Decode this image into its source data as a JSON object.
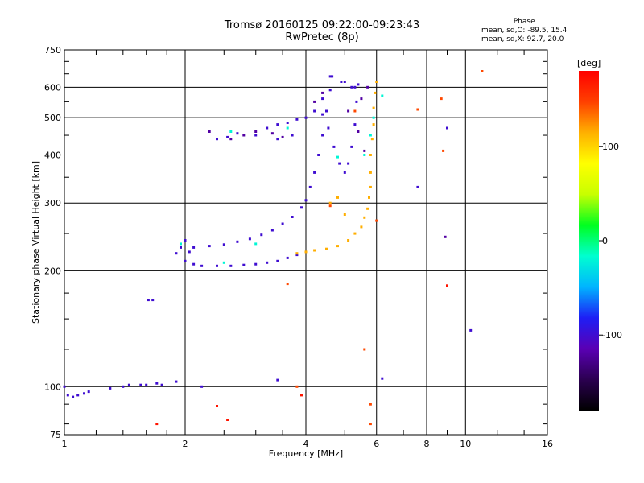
{
  "header": {
    "title_line1": "Tromsø 20160125 09:22:00-09:23:43",
    "title_line2": "RwPretec (8p)"
  },
  "phase_stats": {
    "title": "Phase",
    "line_o": "mean, sd,O: -89.5, 15.4",
    "line_x": "mean, sd,X:  92.7, 20.0"
  },
  "colorbar": {
    "unit": "[deg]",
    "ticks": [
      "100",
      "0",
      "-100"
    ],
    "tick_values": [
      100,
      0,
      -100
    ],
    "range": [
      -180,
      180
    ],
    "stops": [
      "#000000",
      "#2b0050",
      "#5a00b4",
      "#1e1ef5",
      "#00b4ff",
      "#00ffd0",
      "#00ff20",
      "#c8ff00",
      "#ffff00",
      "#ffb000",
      "#ff4000",
      "#ff0000"
    ]
  },
  "chart_data": {
    "type": "scatter",
    "xlabel": "Frequency [MHz]",
    "ylabel": "Stationary phase Virtual Height [km]",
    "xscale": "log",
    "yscale": "log",
    "xlim": [
      1,
      16
    ],
    "ylim": [
      75,
      750
    ],
    "xticks": [
      1,
      2,
      4,
      6,
      8,
      10,
      16
    ],
    "xtick_labels": [
      "1",
      "2",
      "4",
      "6",
      "8",
      "10",
      "16"
    ],
    "yticks": [
      75,
      100,
      200,
      300,
      400,
      500,
      600,
      750
    ],
    "ytick_labels": [
      "75",
      "100",
      "200",
      "300",
      "400",
      "500",
      "600",
      "750"
    ],
    "grid": true,
    "series": [
      {
        "color_value": -100,
        "points": [
          [
            1.0,
            100
          ],
          [
            1.02,
            95
          ],
          [
            1.05,
            94
          ],
          [
            1.08,
            95
          ],
          [
            1.12,
            96
          ],
          [
            1.15,
            97
          ],
          [
            1.3,
            99
          ],
          [
            1.4,
            100
          ],
          [
            1.45,
            101
          ],
          [
            1.55,
            101
          ],
          [
            1.6,
            101
          ],
          [
            1.7,
            102
          ],
          [
            1.75,
            101
          ],
          [
            1.62,
            168
          ],
          [
            1.66,
            168
          ],
          [
            1.9,
            103
          ],
          [
            2.2,
            100
          ],
          [
            1.9,
            222
          ],
          [
            1.95,
            230
          ],
          [
            2.0,
            240
          ],
          [
            2.05,
            224
          ],
          [
            2.0,
            212
          ],
          [
            2.1,
            208
          ],
          [
            2.2,
            206
          ],
          [
            2.4,
            206
          ],
          [
            2.6,
            206
          ],
          [
            2.8,
            207
          ],
          [
            3.0,
            208
          ],
          [
            3.2,
            210
          ],
          [
            3.4,
            212
          ],
          [
            3.6,
            216
          ],
          [
            3.8,
            220
          ],
          [
            2.1,
            230
          ],
          [
            2.3,
            232
          ],
          [
            2.5,
            234
          ],
          [
            2.7,
            238
          ],
          [
            2.9,
            242
          ],
          [
            3.1,
            248
          ],
          [
            3.3,
            255
          ],
          [
            3.5,
            265
          ],
          [
            3.7,
            276
          ],
          [
            3.9,
            292
          ],
          [
            4.0,
            305
          ],
          [
            4.1,
            330
          ],
          [
            4.2,
            360
          ],
          [
            4.3,
            400
          ],
          [
            4.4,
            450
          ],
          [
            4.5,
            520
          ],
          [
            4.6,
            590
          ],
          [
            4.65,
            640
          ],
          [
            4.4,
            510
          ],
          [
            4.55,
            470
          ],
          [
            4.7,
            420
          ],
          [
            4.85,
            380
          ],
          [
            5.0,
            360
          ],
          [
            5.1,
            380
          ],
          [
            5.2,
            420
          ],
          [
            5.3,
            480
          ],
          [
            5.35,
            550
          ],
          [
            5.4,
            610
          ],
          [
            5.2,
            600
          ],
          [
            5.0,
            620
          ],
          [
            4.6,
            640
          ],
          [
            4.9,
            620
          ],
          [
            5.3,
            600
          ],
          [
            3.2,
            470
          ],
          [
            3.4,
            480
          ],
          [
            3.6,
            485
          ],
          [
            3.8,
            495
          ],
          [
            4.0,
            500
          ],
          [
            4.2,
            520
          ],
          [
            4.4,
            560
          ],
          [
            2.4,
            440
          ],
          [
            2.55,
            445
          ],
          [
            2.7,
            455
          ],
          [
            3.0,
            450
          ],
          [
            3.4,
            440
          ],
          [
            3.7,
            450
          ],
          [
            9.0,
            470
          ],
          [
            7.6,
            330
          ],
          [
            10.3,
            140
          ],
          [
            6.2,
            105
          ],
          [
            3.4,
            104
          ]
        ]
      },
      {
        "color_value": -120,
        "points": [
          [
            2.6,
            440
          ],
          [
            2.8,
            450
          ],
          [
            3.0,
            460
          ],
          [
            3.3,
            455
          ],
          [
            3.5,
            445
          ],
          [
            2.3,
            460
          ],
          [
            4.2,
            550
          ],
          [
            4.4,
            580
          ],
          [
            5.1,
            520
          ],
          [
            5.4,
            460
          ],
          [
            5.6,
            410
          ],
          [
            5.5,
            560
          ],
          [
            5.7,
            600
          ],
          [
            8.9,
            245
          ]
        ]
      },
      {
        "color_value": -20,
        "points": [
          [
            1.95,
            235
          ],
          [
            2.5,
            210
          ],
          [
            3.0,
            235
          ],
          [
            3.6,
            470
          ],
          [
            4.8,
            395
          ],
          [
            5.6,
            400
          ],
          [
            5.8,
            450
          ],
          [
            5.9,
            500
          ],
          [
            6.2,
            570
          ],
          [
            2.6,
            460
          ]
        ]
      },
      {
        "color_value": 115,
        "points": [
          [
            3.8,
            222
          ],
          [
            4.0,
            224
          ],
          [
            4.2,
            226
          ],
          [
            4.5,
            228
          ],
          [
            4.8,
            232
          ],
          [
            5.1,
            240
          ],
          [
            5.3,
            250
          ],
          [
            5.5,
            260
          ],
          [
            5.6,
            275
          ],
          [
            5.7,
            290
          ],
          [
            5.75,
            310
          ],
          [
            5.8,
            330
          ],
          [
            5.8,
            360
          ],
          [
            5.8,
            400
          ],
          [
            5.85,
            440
          ],
          [
            5.9,
            480
          ],
          [
            5.9,
            530
          ],
          [
            5.95,
            580
          ],
          [
            6.0,
            620
          ],
          [
            4.6,
            300
          ],
          [
            4.8,
            310
          ],
          [
            5.0,
            280
          ]
        ]
      },
      {
        "color_value": 145,
        "points": [
          [
            3.6,
            185
          ],
          [
            4.6,
            295
          ],
          [
            5.3,
            520
          ],
          [
            7.6,
            525
          ],
          [
            8.7,
            560
          ],
          [
            11.0,
            660
          ],
          [
            6.0,
            270
          ],
          [
            5.8,
            80
          ],
          [
            5.8,
            90
          ],
          [
            8.8,
            410
          ],
          [
            5.6,
            125
          ],
          [
            3.8,
            100
          ]
        ]
      },
      {
        "color_value": 170,
        "points": [
          [
            1.7,
            80
          ],
          [
            2.4,
            89
          ],
          [
            2.55,
            82
          ],
          [
            3.9,
            95
          ],
          [
            9.0,
            183
          ]
        ]
      }
    ]
  }
}
